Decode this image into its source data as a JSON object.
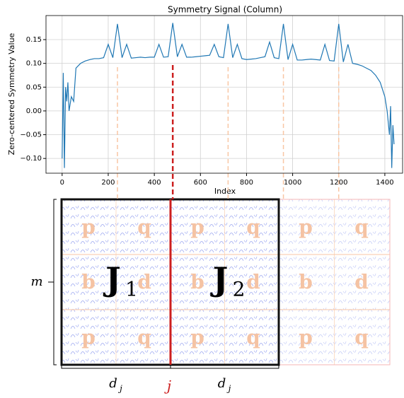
{
  "chart_data": {
    "type": "line",
    "title": "Symmetry Signal (Column)",
    "x_label": "Index",
    "y_label": "Zero-centered Symmetry Value",
    "xlim": [
      -70,
      1477
    ],
    "ylim": [
      -0.131,
      0.2006
    ],
    "xticks": [
      0,
      200,
      400,
      600,
      800,
      1000,
      1200,
      1400
    ],
    "yticks": [
      {
        "value": -0.1,
        "label": "−0.10"
      },
      {
        "value": -0.05,
        "label": "−0.05"
      },
      {
        "value": 0,
        "label": "0.00"
      },
      {
        "value": 0.05,
        "label": "0.05"
      },
      {
        "value": 0.1,
        "label": "0.10"
      },
      {
        "value": 0.15,
        "label": "0.15"
      }
    ],
    "grid": true,
    "guides": [
      240,
      480,
      720,
      960,
      1200
    ],
    "guide_colors": [
      "#f9c6a4",
      "#cc1f1f",
      "#f9c6a4",
      "#f9c6a4",
      "#f9c6a4"
    ],
    "series": [
      {
        "color": "#1f77b4",
        "x": [
          0,
          5,
          10,
          15,
          20,
          25,
          30,
          40,
          50,
          60,
          80,
          100,
          120,
          140,
          160,
          180,
          200,
          220,
          240,
          260,
          280,
          300,
          320,
          340,
          360,
          380,
          400,
          420,
          440,
          460,
          480,
          500,
          520,
          540,
          560,
          580,
          600,
          620,
          640,
          660,
          680,
          700,
          720,
          740,
          760,
          780,
          800,
          820,
          840,
          860,
          880,
          900,
          920,
          940,
          960,
          980,
          1000,
          1020,
          1040,
          1060,
          1080,
          1100,
          1120,
          1140,
          1160,
          1180,
          1200,
          1220,
          1240,
          1260,
          1280,
          1300,
          1320,
          1340,
          1360,
          1380,
          1400,
          1410,
          1420,
          1425,
          1430,
          1435,
          1440
        ],
        "values": [
          -0.1,
          0.08,
          -0.12,
          0.05,
          0.02,
          0.06,
          0.0,
          0.03,
          0.02,
          0.09,
          0.1,
          0.105,
          0.108,
          0.11,
          0.11,
          0.112,
          0.14,
          0.112,
          0.183,
          0.112,
          0.14,
          0.111,
          0.112,
          0.113,
          0.112,
          0.113,
          0.113,
          0.14,
          0.113,
          0.114,
          0.185,
          0.114,
          0.14,
          0.113,
          0.113,
          0.114,
          0.115,
          0.116,
          0.117,
          0.14,
          0.114,
          0.112,
          0.183,
          0.112,
          0.14,
          0.11,
          0.108,
          0.109,
          0.11,
          0.112,
          0.114,
          0.145,
          0.112,
          0.11,
          0.183,
          0.108,
          0.14,
          0.107,
          0.107,
          0.108,
          0.109,
          0.108,
          0.107,
          0.14,
          0.106,
          0.105,
          0.183,
          0.103,
          0.14,
          0.1,
          0.098,
          0.095,
          0.09,
          0.085,
          0.075,
          0.06,
          0.03,
          0.0,
          -0.05,
          0.01,
          -0.12,
          -0.03,
          -0.07
        ]
      }
    ]
  },
  "diagram": {
    "tile_letters": [
      [
        "p",
        "q"
      ],
      [
        "b",
        "d"
      ],
      [
        "p",
        "q"
      ]
    ],
    "blocks": [
      {
        "base": "J",
        "sub": "1"
      },
      {
        "base": "J",
        "sub": "2"
      }
    ],
    "height_label": "m",
    "width_label": {
      "base": "d",
      "sub": "j"
    },
    "cut_label": "j"
  }
}
